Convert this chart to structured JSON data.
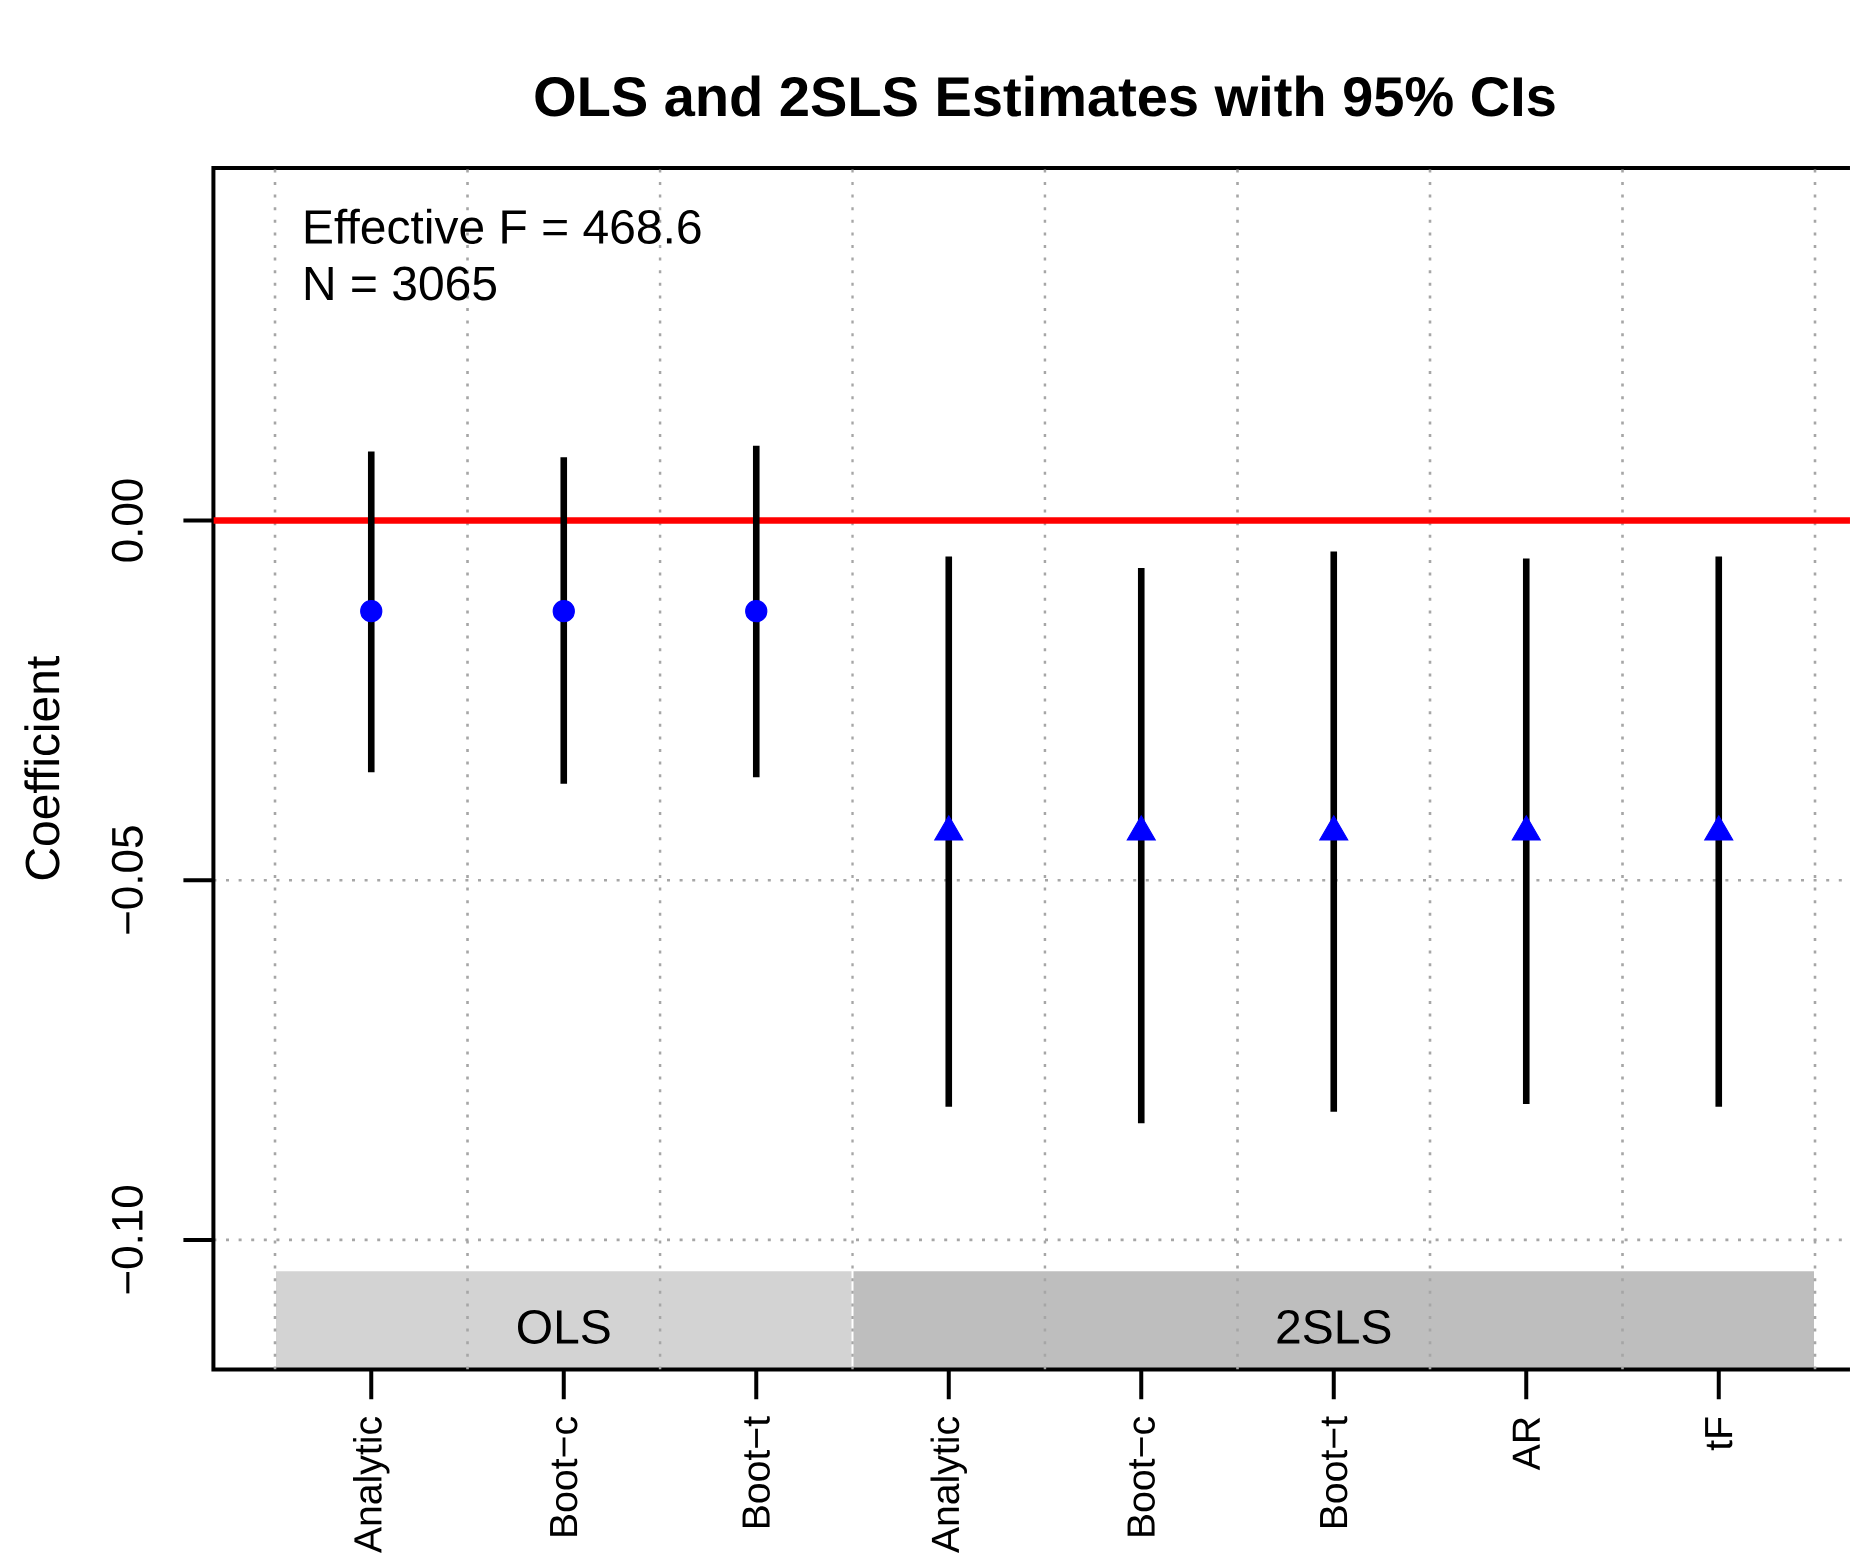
{
  "chart_data": {
    "type": "scatter",
    "title": "OLS and 2SLS Estimates with 95% CIs",
    "ylabel": "Coefficient",
    "annotations": [
      "Effective F = 468.6",
      "N = 3065",
      "OLS",
      "2SLS"
    ],
    "categories": [
      "Analytic",
      "Boot−c",
      "Boot−t",
      "Analytic",
      "Boot−c",
      "Boot−t",
      "AR",
      "tF"
    ],
    "ylim": [
      -0.118,
      0.049
    ],
    "yticks": [
      {
        "value": -0.1,
        "label": "−0.10"
      },
      {
        "value": -0.05,
        "label": "−0.05"
      },
      {
        "value": 0,
        "label": "0.00"
      }
    ],
    "grid": true,
    "series": [
      {
        "color": "#0000ff",
        "marker": "circle",
        "values": [
          -0.0126,
          -0.0126,
          -0.0126,
          null,
          null,
          null,
          null,
          null
        ],
        "errors": [
          [
            -0.035,
            0.0096
          ],
          [
            -0.0366,
            0.0088
          ],
          [
            -0.0357,
            0.0104
          ],
          null,
          null,
          null,
          null,
          null
        ]
      },
      {
        "color": "#0000ff",
        "marker": "triangle",
        "values": [
          null,
          null,
          null,
          -0.0433,
          -0.0433,
          -0.0433,
          -0.0433,
          -0.0433
        ],
        "errors": [
          null,
          null,
          null,
          [
            -0.0815,
            -0.005
          ],
          [
            -0.0838,
            -0.0066
          ],
          [
            -0.0822,
            -0.0043
          ],
          [
            -0.0811,
            -0.0053
          ],
          [
            -0.0815,
            -0.005
          ]
        ]
      }
    ],
    "ref_lines": [
      {
        "axis": "y",
        "value": 0,
        "color": "#ff0000"
      }
    ]
  }
}
